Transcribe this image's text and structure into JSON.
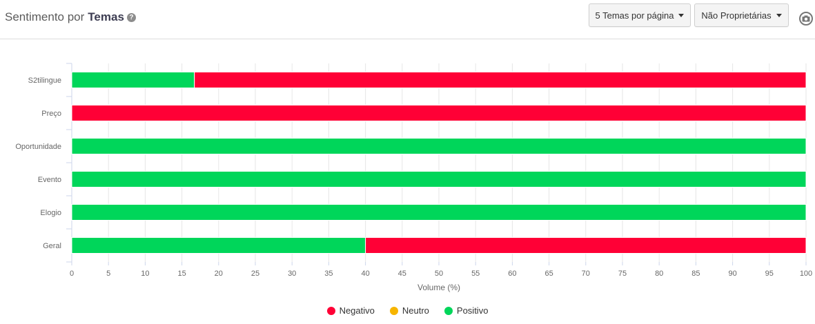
{
  "header": {
    "title_prefix": "Sentimento por",
    "title_bold": "Temas",
    "help_icon": "?",
    "dropdown_per_page": "5 Temas por página",
    "dropdown_filter": "Não Proprietárias",
    "camera_icon": "camera-icon"
  },
  "colors": {
    "negativo": "#ff0036",
    "neutro": "#f7b500",
    "positivo": "#00d65a"
  },
  "chart_data": {
    "type": "bar",
    "orientation": "horizontal",
    "stacked": true,
    "categories": [
      "S2tilingue",
      "Preço",
      "Oportunidade",
      "Evento",
      "Elogio",
      "Geral"
    ],
    "series": [
      {
        "name": "Positivo",
        "values": [
          16.7,
          0,
          100,
          100,
          100,
          40
        ]
      },
      {
        "name": "Neutro",
        "values": [
          0,
          0,
          0,
          0,
          0,
          0
        ]
      },
      {
        "name": "Negativo",
        "values": [
          83.3,
          100,
          0,
          0,
          0,
          60
        ]
      }
    ],
    "xlabel": "Volume (%)",
    "xlim": [
      0,
      100
    ],
    "xticks": [
      0,
      5,
      10,
      15,
      20,
      25,
      30,
      35,
      40,
      45,
      50,
      55,
      60,
      65,
      70,
      75,
      80,
      85,
      90,
      95,
      100
    ],
    "grid": true,
    "legend_position": "bottom"
  },
  "legend": [
    {
      "label": "Negativo",
      "color": "#ff0036"
    },
    {
      "label": "Neutro",
      "color": "#f7b500"
    },
    {
      "label": "Positivo",
      "color": "#00d65a"
    }
  ]
}
